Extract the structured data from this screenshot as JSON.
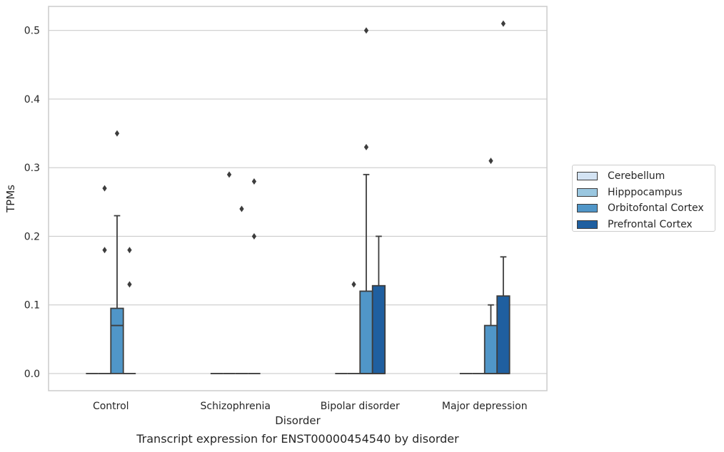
{
  "caption": "Transcript expression for ENST00000454540 by disorder",
  "chart_data": {
    "type": "boxplot",
    "title": "",
    "xlabel": "Disorder",
    "ylabel": "TPMs",
    "ylim": [
      -0.025,
      0.535
    ],
    "yticks": [
      0.0,
      0.1,
      0.2,
      0.3,
      0.4,
      0.5
    ],
    "ytick_labels": [
      "0.0",
      "0.1",
      "0.2",
      "0.3",
      "0.4",
      "0.5"
    ],
    "grid": "horizontal",
    "legend_position": "right",
    "categories": [
      "Control",
      "Schizophrenia",
      "Bipolar disorder",
      "Major depression"
    ],
    "series": [
      {
        "name": "Cerebellum",
        "color": "#d3e3f3",
        "boxes": [
          {
            "q1": 0,
            "median": 0,
            "q3": 0,
            "whisker_low": 0,
            "whisker_high": 0,
            "outliers": []
          },
          {
            "q1": 0,
            "median": 0,
            "q3": 0,
            "whisker_low": 0,
            "whisker_high": 0,
            "outliers": []
          },
          {
            "q1": 0,
            "median": 0,
            "q3": 0,
            "whisker_low": 0,
            "whisker_high": 0,
            "outliers": []
          },
          {
            "q1": 0,
            "median": 0,
            "q3": 0,
            "whisker_low": 0,
            "whisker_high": 0,
            "outliers": []
          }
        ]
      },
      {
        "name": "Hipppocampus",
        "color": "#9ac7e0",
        "boxes": [
          {
            "q1": 0,
            "median": 0,
            "q3": 0,
            "whisker_low": 0,
            "whisker_high": 0,
            "outliers": [
              0.18,
              0.27
            ]
          },
          {
            "q1": 0,
            "median": 0,
            "q3": 0,
            "whisker_low": 0,
            "whisker_high": 0,
            "outliers": [
              0.29
            ]
          },
          {
            "q1": 0,
            "median": 0,
            "q3": 0,
            "whisker_low": 0,
            "whisker_high": 0,
            "outliers": [
              0.13
            ]
          },
          {
            "q1": 0,
            "median": 0,
            "q3": 0,
            "whisker_low": 0,
            "whisker_high": 0,
            "outliers": []
          }
        ]
      },
      {
        "name": "Orbitofontal Cortex",
        "color": "#5096c8",
        "boxes": [
          {
            "q1": 0,
            "median": 0.07,
            "q3": 0.095,
            "whisker_low": 0,
            "whisker_high": 0.23,
            "outliers": [
              0.35
            ]
          },
          {
            "q1": 0,
            "median": 0,
            "q3": 0,
            "whisker_low": 0,
            "whisker_high": 0,
            "outliers": [
              0.24
            ]
          },
          {
            "q1": 0,
            "median": 0,
            "q3": 0.12,
            "whisker_low": 0,
            "whisker_high": 0.29,
            "outliers": [
              0.33,
              0.5
            ]
          },
          {
            "q1": 0,
            "median": 0,
            "q3": 0.07,
            "whisker_low": 0,
            "whisker_high": 0.1,
            "outliers": [
              0.31
            ]
          }
        ]
      },
      {
        "name": "Prefrontal Cortex",
        "color": "#1f5fa0",
        "boxes": [
          {
            "q1": 0,
            "median": 0,
            "q3": 0,
            "whisker_low": 0,
            "whisker_high": 0,
            "outliers": [
              0.13,
              0.18
            ]
          },
          {
            "q1": 0,
            "median": 0,
            "q3": 0,
            "whisker_low": 0,
            "whisker_high": 0,
            "outliers": [
              0.2,
              0.28
            ]
          },
          {
            "q1": 0,
            "median": 0,
            "q3": 0.128,
            "whisker_low": 0,
            "whisker_high": 0.2,
            "outliers": []
          },
          {
            "q1": 0,
            "median": 0,
            "q3": 0.113,
            "whisker_low": 0,
            "whisker_high": 0.17,
            "outliers": [
              0.51
            ]
          }
        ]
      }
    ]
  }
}
